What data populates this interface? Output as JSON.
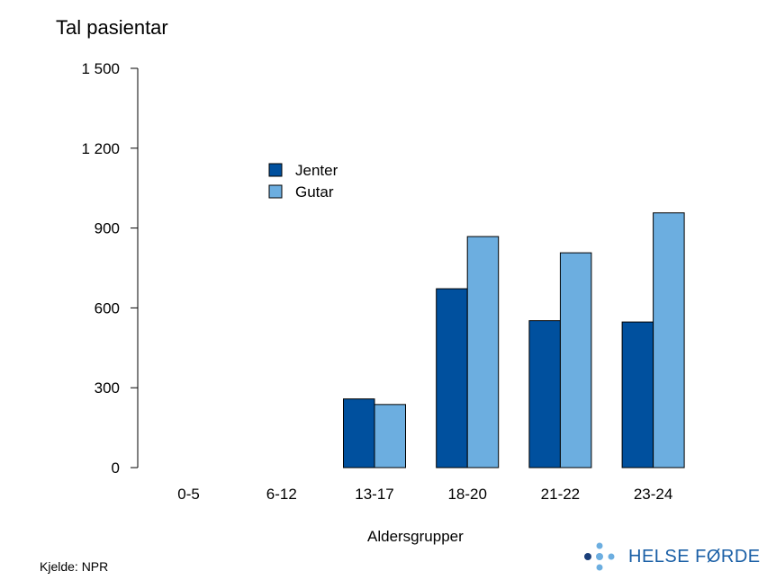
{
  "chart_data": {
    "type": "bar",
    "title": "",
    "ylabel": "Tal pasientar",
    "xlabel": "Aldersgrupper",
    "categories": [
      "0-5",
      "6-12",
      "13-17",
      "18-20",
      "21-22",
      "23-24"
    ],
    "series": [
      {
        "name": "Jenter",
        "color": "#00509e",
        "values": [
          0,
          0,
          258,
          672,
          552,
          547
        ]
      },
      {
        "name": "Gutar",
        "color": "#6caee0",
        "values": [
          0,
          0,
          237,
          868,
          807,
          957
        ]
      }
    ],
    "ylim": [
      0,
      1500
    ],
    "yticks": [
      0,
      300,
      600,
      900,
      1200,
      1500
    ],
    "ytick_labels": [
      "0",
      "300",
      "600",
      "900",
      "1 200",
      "1 500"
    ],
    "grid": false,
    "legend_position": "top-left"
  },
  "source": "Kjelde: NPR",
  "logo": {
    "text": "HELSE FØRDE",
    "color": "#1a5fa6",
    "dot_colors": [
      "#1a3f7a",
      "#6caee0"
    ]
  }
}
